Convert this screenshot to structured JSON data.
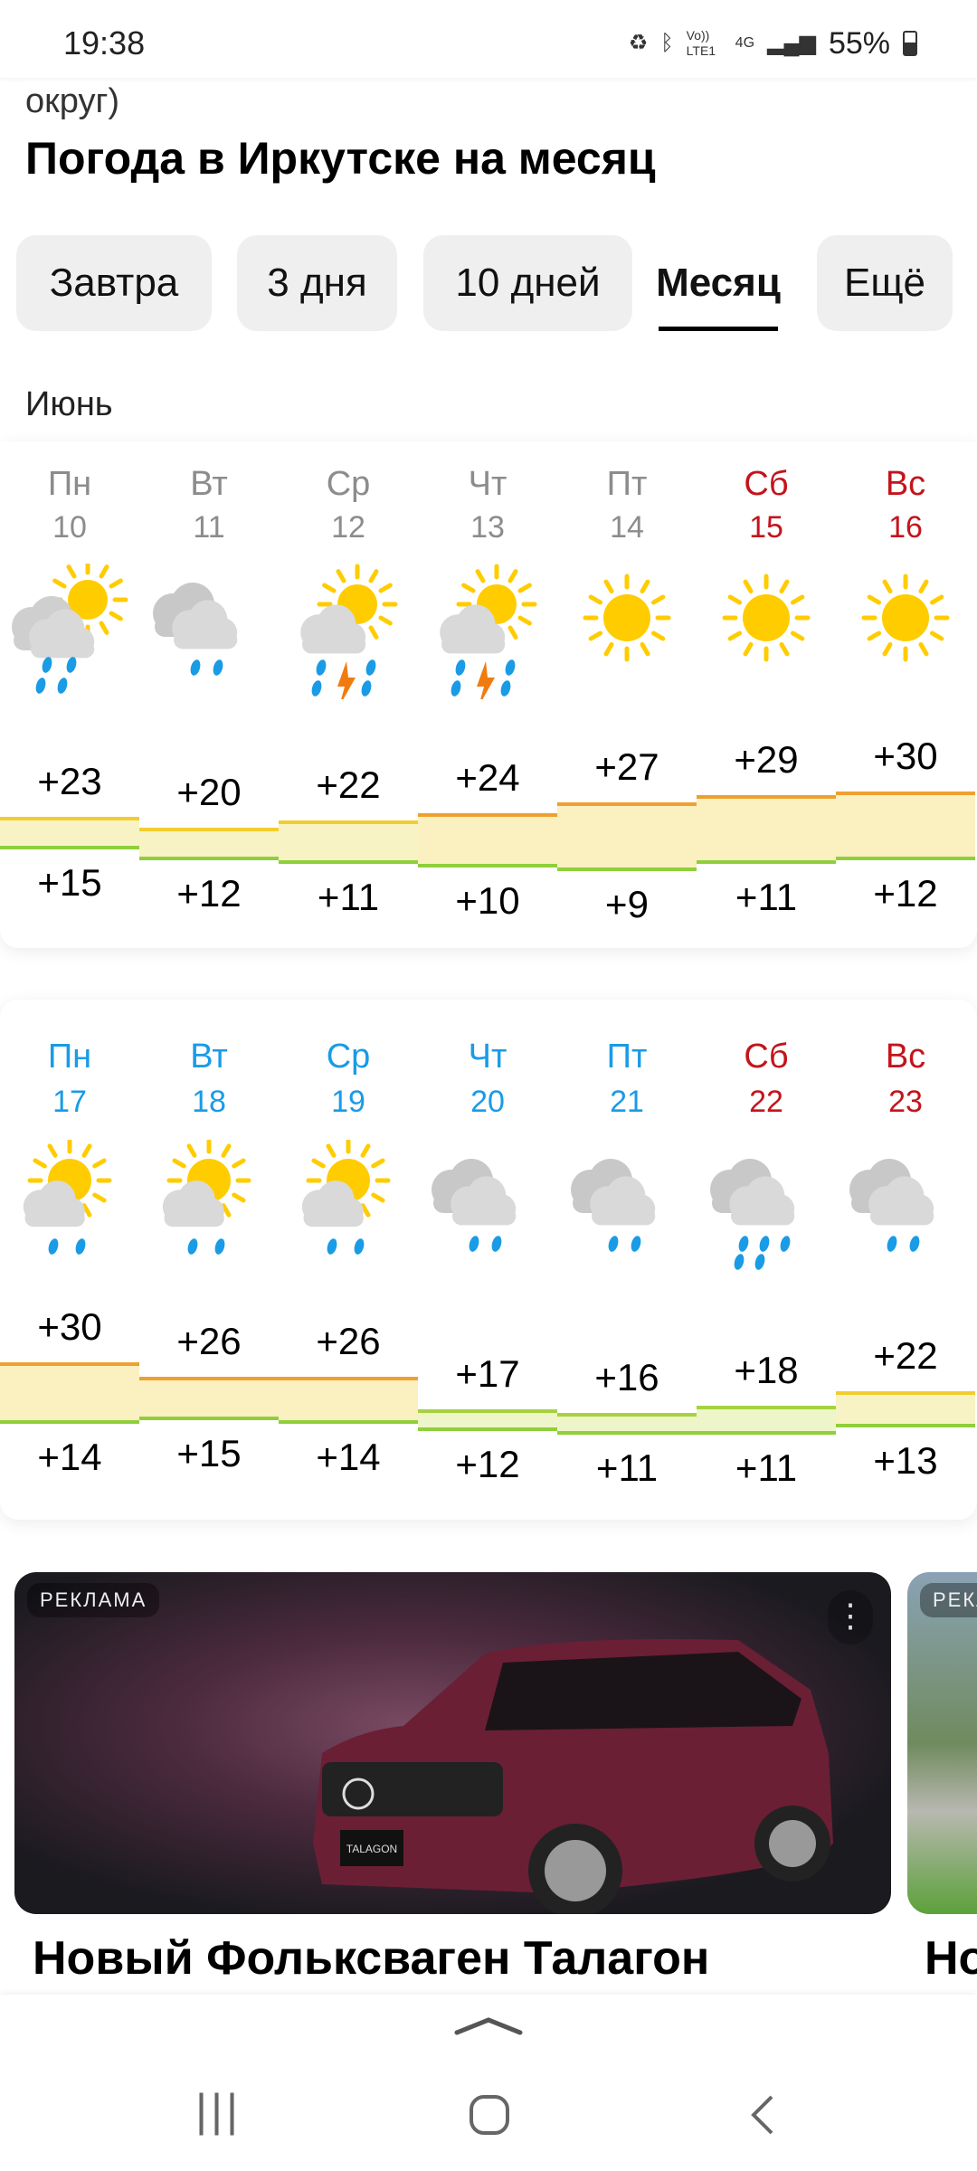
{
  "status_bar": {
    "time": "19:38",
    "battery": "55%",
    "network": "4G",
    "volte": "Vo)) LTE1"
  },
  "header": {
    "region_partial": "округ)",
    "title": "Погода в Иркутске на месяц"
  },
  "tabs": [
    {
      "label": "Завтра",
      "active": false
    },
    {
      "label": "3 дня",
      "active": false
    },
    {
      "label": "10 дней",
      "active": false
    },
    {
      "label": "Месяц",
      "active": true
    },
    {
      "label": "Ещё",
      "active": false
    }
  ],
  "month": "Июнь",
  "colors": {
    "weekday_past": "#8c8c8c",
    "weekday_future": "#1a9be6",
    "weekend": "#c4141c",
    "rain": "#1a9be6",
    "sun": "#ffcc00",
    "cloud": "#d9d9d9",
    "lightning": "#f07c10"
  },
  "weeks": [
    {
      "days": [
        {
          "name": "Пн",
          "date": "10",
          "tone": "weekday_past",
          "icon": "partly-cloudy-rain",
          "high": "+23",
          "low": "+15",
          "hi": 23,
          "lo": 15
        },
        {
          "name": "Вт",
          "date": "11",
          "tone": "weekday_past",
          "icon": "cloudy-rain",
          "high": "+20",
          "low": "+12",
          "hi": 20,
          "lo": 12
        },
        {
          "name": "Ср",
          "date": "12",
          "tone": "weekday_past",
          "icon": "partly-cloudy-thunderstorm",
          "high": "+22",
          "low": "+11",
          "hi": 22,
          "lo": 11
        },
        {
          "name": "Чт",
          "date": "13",
          "tone": "weekday_past",
          "icon": "partly-cloudy-thunderstorm",
          "high": "+24",
          "low": "+10",
          "hi": 24,
          "lo": 10
        },
        {
          "name": "Пт",
          "date": "14",
          "tone": "weekday_past",
          "icon": "sunny",
          "high": "+27",
          "low": "+9",
          "hi": 27,
          "lo": 9
        },
        {
          "name": "Сб",
          "date": "15",
          "tone": "weekend",
          "icon": "sunny",
          "high": "+29",
          "low": "+11",
          "hi": 29,
          "lo": 11
        },
        {
          "name": "Вс",
          "date": "16",
          "tone": "weekend",
          "icon": "sunny",
          "high": "+30",
          "low": "+12",
          "hi": 30,
          "lo": 12
        }
      ]
    },
    {
      "days": [
        {
          "name": "Пн",
          "date": "17",
          "tone": "weekday_future",
          "icon": "partly-cloudy-light-rain",
          "high": "+30",
          "low": "+14",
          "hi": 30,
          "lo": 14
        },
        {
          "name": "Вт",
          "date": "18",
          "tone": "weekday_future",
          "icon": "partly-cloudy-light-rain",
          "high": "+26",
          "low": "+15",
          "hi": 26,
          "lo": 15
        },
        {
          "name": "Ср",
          "date": "19",
          "tone": "weekday_future",
          "icon": "partly-cloudy-light-rain",
          "high": "+26",
          "low": "+14",
          "hi": 26,
          "lo": 14
        },
        {
          "name": "Чт",
          "date": "20",
          "tone": "weekday_future",
          "icon": "cloudy-rain",
          "high": "+17",
          "low": "+12",
          "hi": 17,
          "lo": 12
        },
        {
          "name": "Пт",
          "date": "21",
          "tone": "weekday_future",
          "icon": "cloudy-rain",
          "high": "+16",
          "low": "+11",
          "hi": 16,
          "lo": 11
        },
        {
          "name": "Сб",
          "date": "22",
          "tone": "weekend",
          "icon": "cloudy-heavy-rain",
          "high": "+18",
          "low": "+11",
          "hi": 18,
          "lo": 11
        },
        {
          "name": "Вс",
          "date": "23",
          "tone": "weekend",
          "icon": "cloudy-rain",
          "high": "+22",
          "low": "+13",
          "hi": 22,
          "lo": 13
        }
      ]
    }
  ],
  "ads": [
    {
      "label": "РЕКЛАМА",
      "title": "Новый Фольксваген Талагон",
      "badge": "TALAGON"
    },
    {
      "label": "РЕКЛ",
      "title": "Но"
    }
  ]
}
